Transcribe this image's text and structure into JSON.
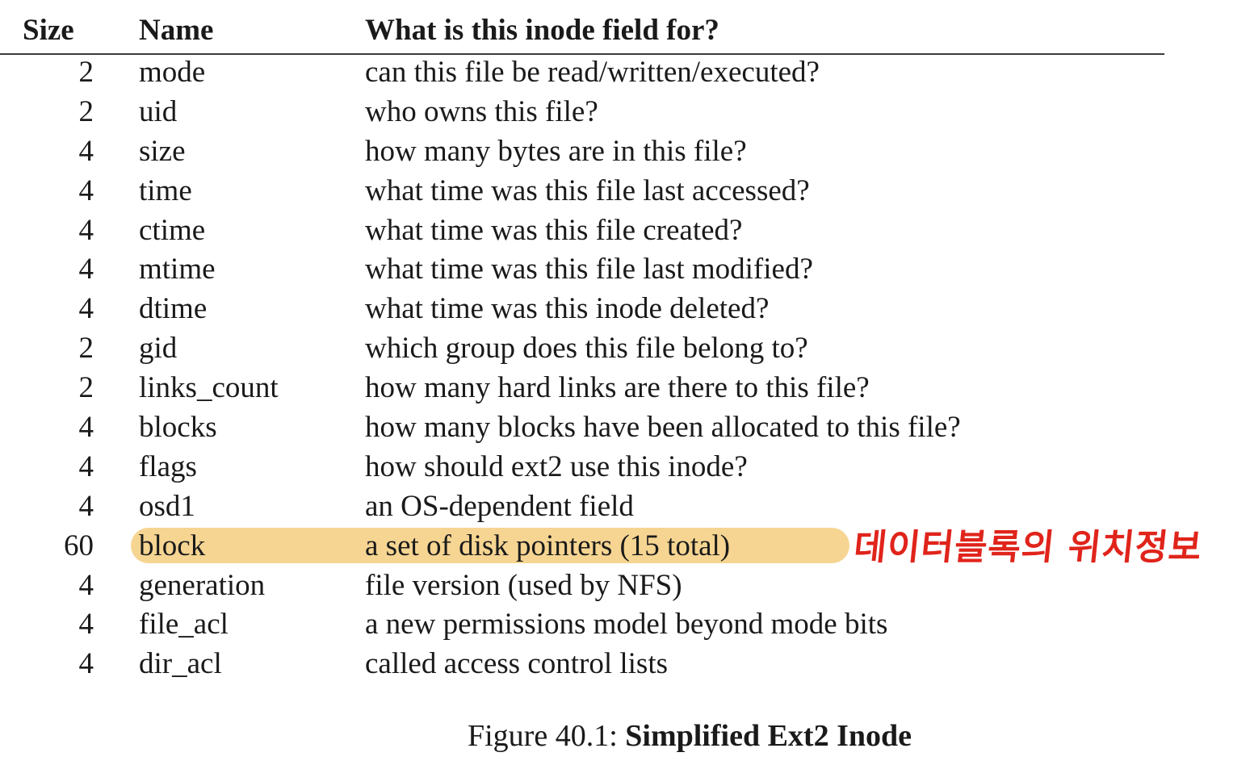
{
  "table": {
    "headers": {
      "size": "Size",
      "name": "Name",
      "desc": "What is this inode field for?"
    },
    "rows": [
      {
        "size": "2",
        "name": "mode",
        "desc": "can this file be read/written/executed?"
      },
      {
        "size": "2",
        "name": "uid",
        "desc": "who owns this file?"
      },
      {
        "size": "4",
        "name": "size",
        "desc": "how many bytes are in this file?"
      },
      {
        "size": "4",
        "name": "time",
        "desc": "what time was this file last accessed?"
      },
      {
        "size": "4",
        "name": "ctime",
        "desc": "what time was this file created?"
      },
      {
        "size": "4",
        "name": "mtime",
        "desc": "what time was this file last modified?"
      },
      {
        "size": "4",
        "name": "dtime",
        "desc": "what time was this inode deleted?"
      },
      {
        "size": "2",
        "name": "gid",
        "desc": "which group does this file belong to?"
      },
      {
        "size": "2",
        "name": "links_count",
        "desc": "how many hard links are there to this file?"
      },
      {
        "size": "4",
        "name": "blocks",
        "desc": "how many blocks have been allocated to this file?"
      },
      {
        "size": "4",
        "name": "flags",
        "desc": "how should ext2 use this inode?"
      },
      {
        "size": "4",
        "name": "osd1",
        "desc": "an OS-dependent field"
      },
      {
        "size": "60",
        "name": "block",
        "desc": "a set of disk pointers (15 total)"
      },
      {
        "size": "4",
        "name": "generation",
        "desc": "file version (used by NFS)"
      },
      {
        "size": "4",
        "name": "file_acl",
        "desc": "a new permissions model beyond mode bits"
      },
      {
        "size": "4",
        "name": "dir_acl",
        "desc": "called access control lists"
      }
    ]
  },
  "annotation": {
    "text": "데이터블록의 위치정보",
    "color": "#e0241b",
    "highlight_color": "#f6d592"
  },
  "caption": {
    "label": "Figure 40.1: ",
    "title": "Simplified Ext2 Inode"
  }
}
